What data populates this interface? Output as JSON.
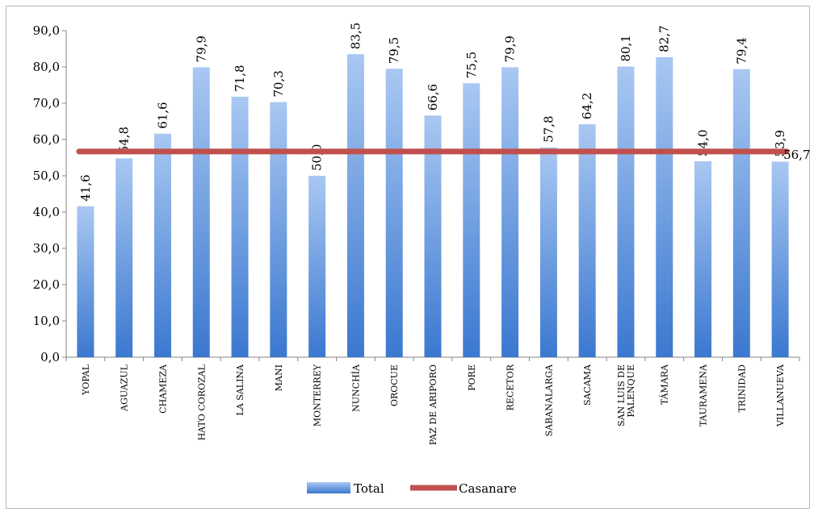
{
  "chart_data": {
    "type": "bar",
    "categories": [
      "YOPAL",
      "AGUAZUL",
      "CHAMEZA",
      "HATO COROZAL",
      "LA SALINA",
      "MANI",
      "MONTERREY",
      "NUNCHÍA",
      "OROCUE",
      "PAZ DE ARIPORO",
      "PORE",
      "RECETOR",
      "SABANALARGA",
      "SACAMA",
      "SAN LUIS DE PALENQUE",
      "TÁMARA",
      "TAURAMENA",
      "TRINIDAD",
      "VILLANUEVA"
    ],
    "category_labels": [
      "YOPAL",
      "AGUAZUL",
      "CHAMEZA",
      "HATO COROZAL",
      "LA SALINA",
      "MANI",
      "MONTERREY",
      "NUNCHÍA",
      "OROCUE",
      "PAZ DE ARIPORO",
      "PORE",
      "RECETOR",
      "SABANALARGA",
      "SACAMA",
      "SAN LUIS DE|PALENQUE",
      "TÁMARA",
      "TAURAMENA",
      "TRINIDAD",
      "VILLANUEVA"
    ],
    "series": [
      {
        "name": "Total",
        "kind": "bar",
        "color": "#5b9bd5",
        "values": [
          41.6,
          54.8,
          61.6,
          79.9,
          71.8,
          70.3,
          50.0,
          83.5,
          79.5,
          66.6,
          75.5,
          79.9,
          57.8,
          64.2,
          80.1,
          82.7,
          54.0,
          79.4,
          53.9
        ],
        "labels": [
          "41,6",
          "54,8",
          "61,6",
          "79,9",
          "71,8",
          "70,3",
          "50,0",
          "83,5",
          "79,5",
          "66,6",
          "75,5",
          "79,9",
          "57,8",
          "64,2",
          "80,1",
          "82,7",
          "54,0",
          "79,4",
          "53,9"
        ]
      },
      {
        "name": "Casanare",
        "kind": "line",
        "color": "#c0504d",
        "value": 56.7,
        "label": "56,7"
      }
    ],
    "ylim": [
      0,
      90
    ],
    "yticks": [
      "0,0",
      "10,0",
      "20,0",
      "30,0",
      "40,0",
      "50,0",
      "60,0",
      "70,0",
      "80,0",
      "90,0"
    ],
    "title": "",
    "xlabel": "",
    "ylabel": "",
    "grid": false,
    "legend_position": "bottom"
  }
}
